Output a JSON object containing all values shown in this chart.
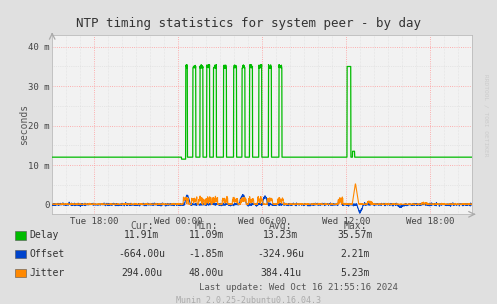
{
  "title": "NTP timing statistics for system peer - by day",
  "ylabel": "seconds",
  "background_color": "#e0e0e0",
  "plot_bg_color": "#f2f2f2",
  "grid_color_h": "#ff9999",
  "grid_color_v": "#ff9999",
  "grid_color_minor": "#d8d8d8",
  "x_labels": [
    "Tue 18:00",
    "Wed 00:00",
    "Wed 06:00",
    "Wed 12:00",
    "Wed 18:00"
  ],
  "y_labels": [
    "0",
    "10 m",
    "20 m",
    "30 m",
    "40 m"
  ],
  "ylim": [
    -2.5,
    43
  ],
  "delay_color": "#00bb00",
  "offset_color": "#0044cc",
  "jitter_color": "#ff8800",
  "rrdtool_color": "#cccccc",
  "legend_items": [
    {
      "label": "Delay",
      "color": "#00bb00"
    },
    {
      "label": "Offset",
      "color": "#0044cc"
    },
    {
      "label": "Jitter",
      "color": "#ff8800"
    }
  ],
  "stats_headers": [
    "Cur:",
    "Min:",
    "Avg:",
    "Max:"
  ],
  "stats_rows": [
    [
      "11.91m",
      "11.09m",
      "13.23m",
      "35.57m"
    ],
    [
      "-664.00u",
      "-1.85m",
      "-324.96u",
      "2.21m"
    ],
    [
      "294.00u",
      "48.00u",
      "384.41u",
      "5.23m"
    ]
  ],
  "last_update": "Last update: Wed Oct 16 21:55:16 2024",
  "munin_version": "Munin 2.0.25-2ubuntu0.16.04.3"
}
